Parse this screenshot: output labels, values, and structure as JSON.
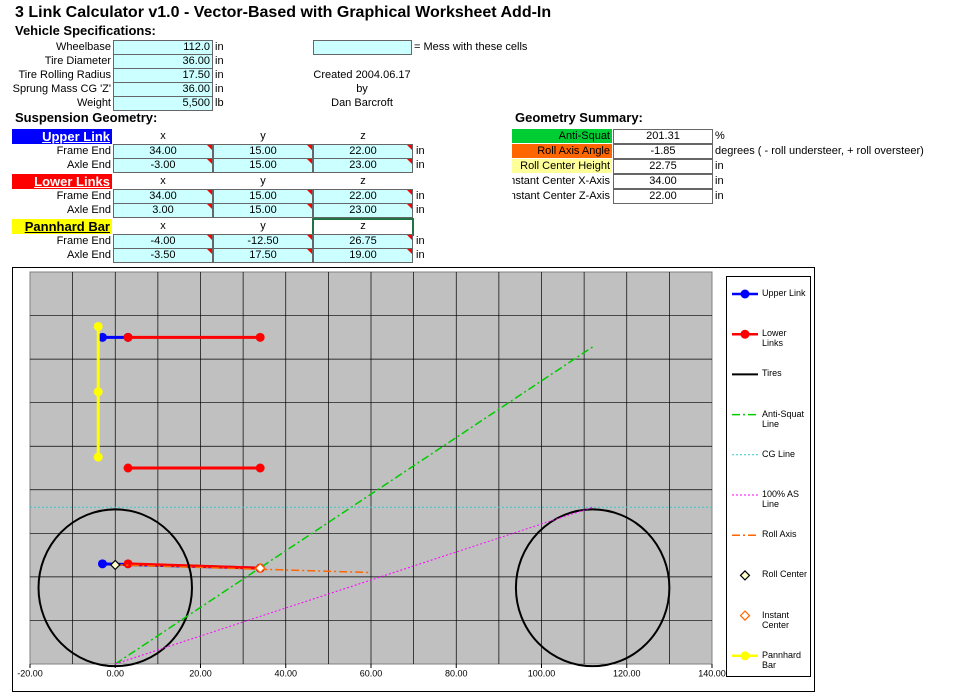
{
  "title": "3 Link Calculator v1.0  -  Vector-Based with Graphical Worksheet Add-In",
  "vehicle": {
    "heading": "Vehicle Specifications:",
    "rows": [
      {
        "label": "Wheelbase",
        "value": "112.0",
        "unit": "in"
      },
      {
        "label": "Tire Diameter",
        "value": "36.00",
        "unit": "in"
      },
      {
        "label": "Tire Rolling Radius",
        "value": "17.50",
        "unit": "in"
      },
      {
        "label": "Sprung Mass CG 'Z'",
        "value": "36.00",
        "unit": "in"
      },
      {
        "label": "Weight",
        "value": "5,500",
        "unit": "lb"
      }
    ]
  },
  "note": "= Mess with these cells",
  "credits": [
    "Created 2004.06.17",
    "by",
    "Dan Barcroft"
  ],
  "suspension": {
    "heading": "Suspension Geometry:",
    "axes": [
      "x",
      "y",
      "z"
    ],
    "groups": [
      {
        "name": "Upper Link",
        "color": "#0000ff",
        "text_color": "#ffffff",
        "rows": [
          {
            "label": "Frame End",
            "values": [
              "34.00",
              "15.00",
              "22.00"
            ],
            "unit": "in"
          },
          {
            "label": "Axle End",
            "values": [
              "-3.00",
              "15.00",
              "23.00"
            ],
            "unit": "in"
          }
        ]
      },
      {
        "name": "Lower Links",
        "color": "#ff0000",
        "text_color": "#ffffff",
        "rows": [
          {
            "label": "Frame End",
            "values": [
              "34.00",
              "15.00",
              "22.00"
            ],
            "unit": "in"
          },
          {
            "label": "Axle End",
            "values": [
              "3.00",
              "15.00",
              "23.00"
            ],
            "unit": "in"
          }
        ]
      },
      {
        "name": "Pannhard Bar",
        "color": "#ffff00",
        "text_color": "#000000",
        "rows": [
          {
            "label": "Frame End",
            "values": [
              "-4.00",
              "-12.50",
              "26.75"
            ],
            "unit": "in"
          },
          {
            "label": "Axle End",
            "values": [
              "-3.50",
              "17.50",
              "19.00"
            ],
            "unit": "in"
          }
        ]
      }
    ]
  },
  "summary": {
    "heading": "Geometry Summary:",
    "rows": [
      {
        "label": "Anti-Squat",
        "value": "201.31",
        "unit": "%",
        "color": "#00cc33"
      },
      {
        "label": "Roll Axis Angle",
        "value": "-1.85",
        "unit": "degrees ( - roll understeer, + roll oversteer)",
        "color": "#ff6600"
      },
      {
        "label": "Roll Center Height",
        "value": "22.75",
        "unit": "in",
        "color": "#ffff99"
      },
      {
        "label": "Instant Center X-Axis",
        "value": "34.00",
        "unit": "in"
      },
      {
        "label": "Instant Center Z-Axis",
        "value": "22.00",
        "unit": "in"
      }
    ]
  },
  "chart_data": {
    "type": "line",
    "grid": true,
    "xlim": [
      -20,
      140
    ],
    "ylim": [
      0,
      90
    ],
    "xticks": [
      {
        "value": -20,
        "label": "-20.00"
      },
      {
        "value": 0,
        "label": "0.00"
      },
      {
        "value": 20,
        "label": "20.00"
      },
      {
        "value": 40,
        "label": "40.00"
      },
      {
        "value": 60,
        "label": "60.00"
      },
      {
        "value": 80,
        "label": "80.00"
      },
      {
        "value": 100,
        "label": "100.00"
      },
      {
        "value": 120,
        "label": "120.00"
      },
      {
        "value": 140,
        "label": "140.00"
      }
    ],
    "xgrid": [
      -10,
      0,
      10,
      20,
      30,
      40,
      50,
      60,
      70,
      80,
      90,
      100,
      110,
      120,
      130
    ],
    "ygrid": [
      10,
      20,
      30,
      40,
      50,
      60,
      70,
      80
    ],
    "series": [
      {
        "name": "Upper Link",
        "color": "#0000ff",
        "line_style": "solid",
        "line_width": 3,
        "marker": "circle",
        "x": [
          -3,
          3,
          null,
          -3,
          34
        ],
        "values": [
          75,
          75,
          null,
          23,
          22
        ]
      },
      {
        "name": "Lower Links",
        "color": "#ff0000",
        "line_style": "solid",
        "line_width": 3,
        "marker": "circle",
        "x": [
          3,
          34,
          null,
          3,
          34,
          null,
          3,
          34
        ],
        "values": [
          75,
          75,
          null,
          45,
          45,
          null,
          23,
          22
        ]
      },
      {
        "name": "Tires",
        "color": "#000000",
        "line_style": "circle",
        "line_width": 2,
        "marker": "none",
        "x": [
          0,
          112
        ],
        "values": [
          17.5,
          17.5
        ],
        "r": [
          18,
          18
        ]
      },
      {
        "name": "Anti-Squat Line",
        "color": "#00cc00",
        "line_style": "dashdot",
        "line_width": 1.5,
        "marker": "none",
        "x": [
          0,
          112
        ],
        "values": [
          0,
          72.8
        ]
      },
      {
        "name": "CG Line",
        "color": "#33cccc",
        "line_style": "dotted",
        "line_width": 1,
        "marker": "none",
        "x": [
          -20,
          140
        ],
        "values": [
          36,
          36
        ]
      },
      {
        "name": "100% AS Line",
        "color": "#ff00ff",
        "line_style": "dotted",
        "line_width": 1,
        "marker": "none",
        "x": [
          0,
          112
        ],
        "values": [
          0,
          36
        ]
      },
      {
        "name": "Roll Axis",
        "color": "#ff6600",
        "line_style": "dashdot",
        "line_width": 1.5,
        "marker": "none",
        "x": [
          0,
          60
        ],
        "values": [
          22.75,
          21
        ]
      },
      {
        "name": "Roll Center",
        "color": "#000000",
        "line_style": "none",
        "line_width": 1,
        "marker": "diamond",
        "marker_fill": "#ffffcc",
        "x": [
          0
        ],
        "values": [
          22.75
        ]
      },
      {
        "name": "Instant Center",
        "color": "#ff6600",
        "line_style": "none",
        "line_width": 1,
        "marker": "diamond",
        "marker_fill": "#ffffff",
        "x": [
          34
        ],
        "values": [
          22
        ]
      },
      {
        "name": "Pannhard Bar",
        "color": "#ffff00",
        "line_style": "solid",
        "line_width": 3,
        "marker": "circle",
        "x": [
          -4,
          -4,
          -4
        ],
        "values": [
          77.5,
          62.5,
          47.5
        ]
      }
    ]
  }
}
